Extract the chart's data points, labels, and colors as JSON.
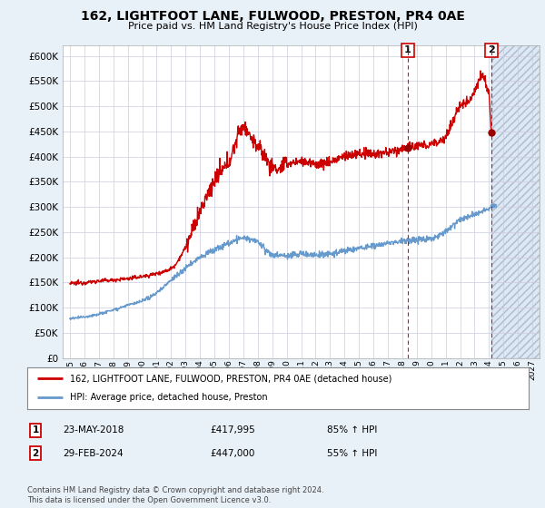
{
  "title": "162, LIGHTFOOT LANE, FULWOOD, PRESTON, PR4 0AE",
  "subtitle": "Price paid vs. HM Land Registry's House Price Index (HPI)",
  "ylim": [
    0,
    620000
  ],
  "ytick_vals": [
    0,
    50000,
    100000,
    150000,
    200000,
    250000,
    300000,
    350000,
    400000,
    450000,
    500000,
    550000,
    600000
  ],
  "hpi_color": "#6699cc",
  "price_color": "#cc0000",
  "marker_color": "#990000",
  "annotation_color": "#cc0000",
  "bg_color": "#e8f0f8",
  "plot_bg": "#ffffff",
  "hatch_bg": "#dde8f5",
  "grid_color": "#ccccdd",
  "legend_label_price": "162, LIGHTFOOT LANE, FULWOOD, PRESTON, PR4 0AE (detached house)",
  "legend_label_hpi": "HPI: Average price, detached house, Preston",
  "sale1_label": "1",
  "sale1_date": "23-MAY-2018",
  "sale1_price": "£417,995",
  "sale1_hpi": "85% ↑ HPI",
  "sale2_label": "2",
  "sale2_date": "29-FEB-2024",
  "sale2_price": "£447,000",
  "sale2_hpi": "55% ↑ HPI",
  "footnote": "Contains HM Land Registry data © Crown copyright and database right 2024.\nThis data is licensed under the Open Government Licence v3.0.",
  "sale1_x": 2018.38,
  "sale1_y": 417995,
  "sale2_x": 2024.16,
  "sale2_y": 447000,
  "xmin": 1994.5,
  "xmax": 2027.5,
  "xtick_years": [
    1995,
    1996,
    1997,
    1998,
    1999,
    2000,
    2001,
    2002,
    2003,
    2004,
    2005,
    2006,
    2007,
    2008,
    2009,
    2010,
    2011,
    2012,
    2013,
    2014,
    2015,
    2016,
    2017,
    2018,
    2019,
    2020,
    2021,
    2022,
    2023,
    2024,
    2025,
    2026,
    2027
  ],
  "hatch_xstart": 2024.16,
  "hatch_xend": 2027.5,
  "price_anchors_x": [
    1995,
    1996,
    1997,
    1998,
    1999,
    2000,
    2001,
    2002,
    2003,
    2004,
    2005,
    2006,
    2007.0,
    2007.5,
    2008.5,
    2009,
    2009.5,
    2010,
    2011,
    2012,
    2013,
    2014,
    2015,
    2016,
    2017,
    2018.38,
    2019,
    2020,
    2021,
    2021.5,
    2022,
    2022.5,
    2023,
    2023.5,
    2024.0,
    2024.16
  ],
  "price_anchors_y": [
    148000,
    150000,
    153000,
    155000,
    158000,
    162000,
    168000,
    178000,
    220000,
    290000,
    350000,
    390000,
    460000,
    440000,
    400000,
    380000,
    375000,
    385000,
    390000,
    385000,
    390000,
    400000,
    405000,
    405000,
    408000,
    417995,
    420000,
    425000,
    440000,
    470000,
    500000,
    510000,
    530000,
    560000,
    520000,
    447000
  ],
  "hpi_anchors_x": [
    1995,
    1996,
    1997,
    1998,
    1999,
    2000,
    2001,
    2002,
    2003,
    2004,
    2005,
    2006,
    2007,
    2008,
    2009,
    2010,
    2011,
    2012,
    2013,
    2014,
    2015,
    2016,
    2017,
    2018,
    2019,
    2020,
    2021,
    2022,
    2023,
    2024.16
  ],
  "hpi_anchors_y": [
    78000,
    82000,
    88000,
    96000,
    105000,
    113000,
    130000,
    155000,
    178000,
    200000,
    215000,
    228000,
    238000,
    230000,
    205000,
    203000,
    207000,
    205000,
    207000,
    213000,
    218000,
    222000,
    228000,
    232000,
    235000,
    238000,
    252000,
    275000,
    285000,
    300000
  ]
}
